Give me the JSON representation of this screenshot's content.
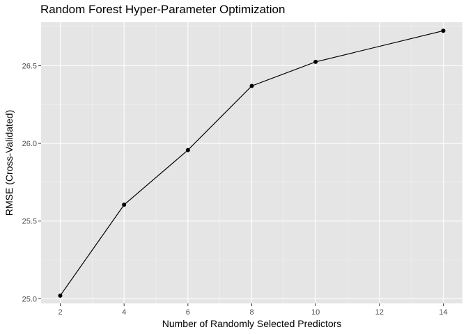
{
  "chart_data": {
    "type": "line",
    "title": "Random Forest Hyper-Parameter Optimization",
    "xlabel": "Number of Randomly Selected Predictors",
    "ylabel": "RMSE (Cross-Validated)",
    "x": [
      2,
      4,
      6,
      8,
      10,
      14
    ],
    "y": [
      25.02,
      25.605,
      25.957,
      26.37,
      26.525,
      26.725
    ],
    "xlim": [
      1.4,
      14.6
    ],
    "ylim": [
      24.97,
      26.78
    ],
    "xticks": [
      2,
      4,
      6,
      8,
      10,
      12,
      14
    ],
    "xtick_labels": [
      "2",
      "4",
      "6",
      "8",
      "10",
      "12",
      "14"
    ],
    "yticks": [
      25.0,
      25.5,
      26.0,
      26.5
    ],
    "ytick_labels": [
      "25.0",
      "25.5",
      "26.0",
      "26.5"
    ],
    "grid": true,
    "markers": true,
    "colors": {
      "panel": "#e5e5e5",
      "grid_major": "#ffffff",
      "line": "#000000"
    }
  }
}
